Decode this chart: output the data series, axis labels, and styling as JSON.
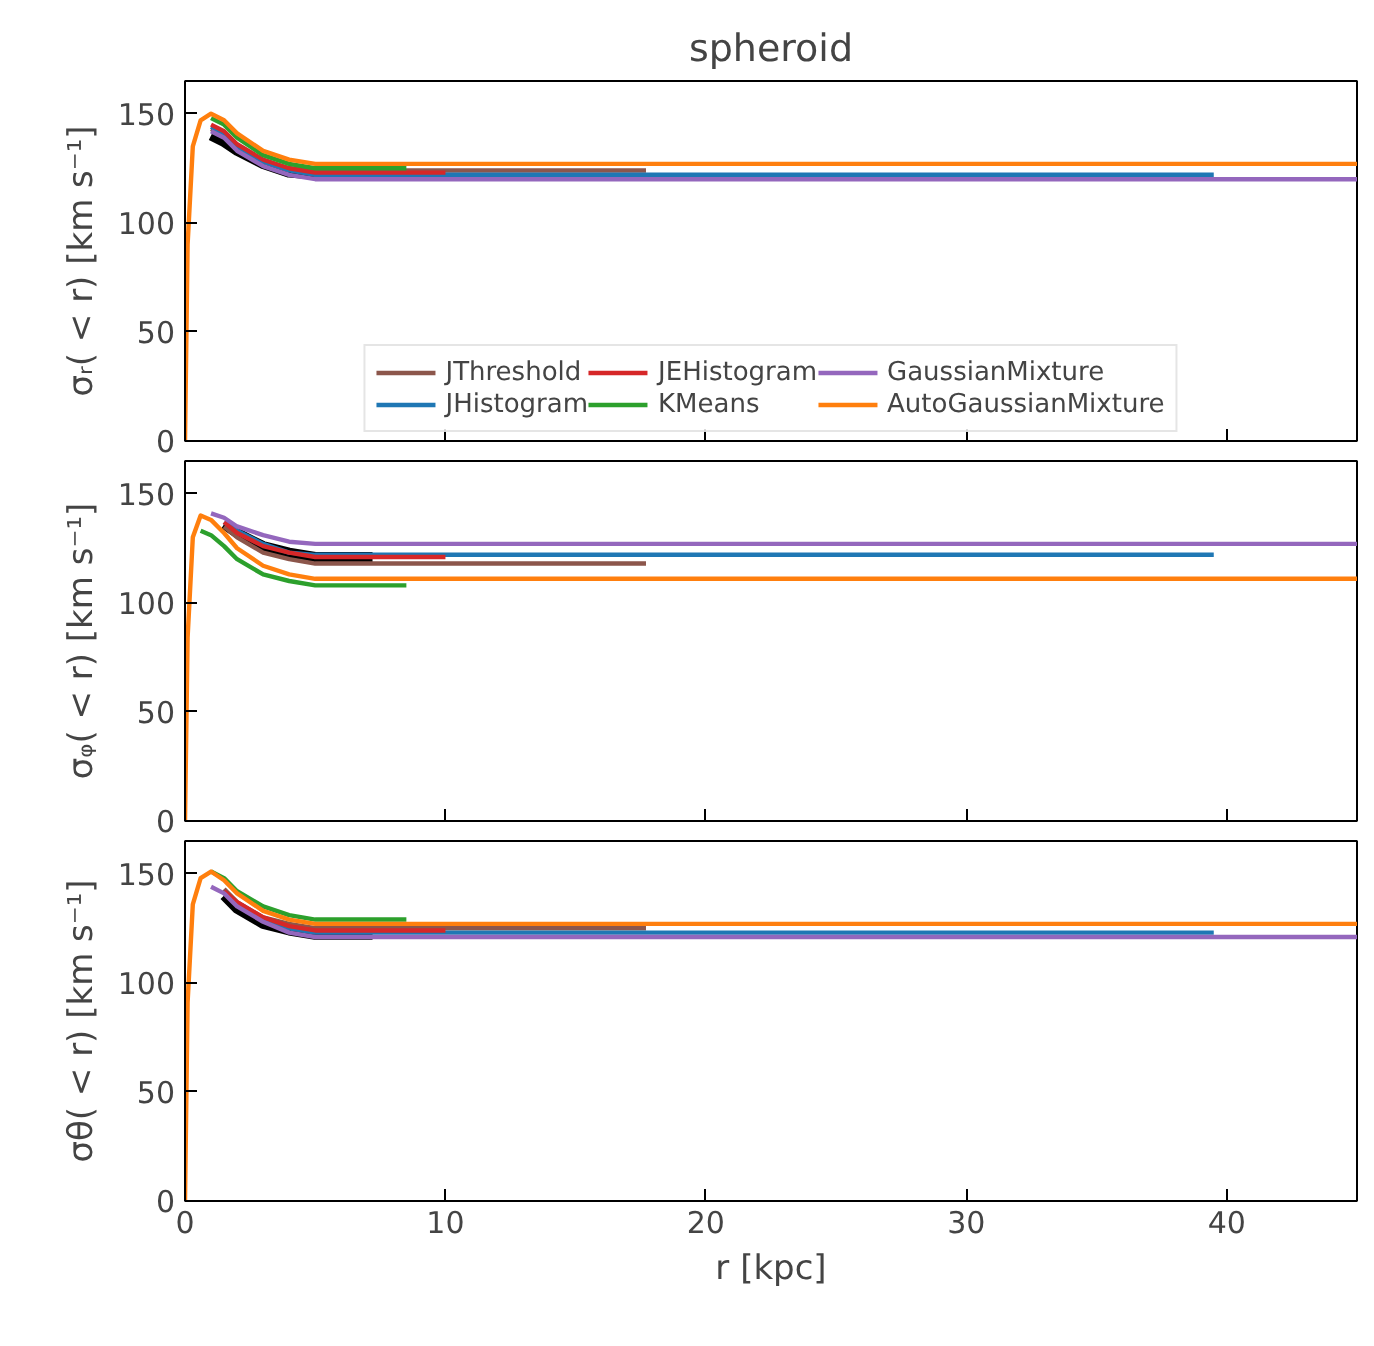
{
  "chart_data": [
    {
      "type": "line",
      "title": "spheroid",
      "ylabel": "σᵣ( < r) [km s⁻¹]",
      "xlim": [
        0,
        45
      ],
      "ylim": [
        0,
        165
      ],
      "xticks": [
        0,
        10,
        20,
        30,
        40
      ],
      "yticks": [
        0,
        50,
        100,
        150
      ],
      "grid": false,
      "legend": "bottom",
      "tick_labels": "y",
      "series": [
        {
          "color": "#000000",
          "x": [
            1,
            1.5,
            2,
            3,
            4,
            5,
            7.2
          ],
          "values": [
            140,
            137,
            133,
            127,
            123,
            122,
            122
          ]
        },
        {
          "name": "JThreshold",
          "color": "#8c564b",
          "x": [
            1,
            1.5,
            2,
            3,
            4,
            5,
            17.7
          ],
          "values": [
            143,
            140,
            135,
            128,
            125,
            124,
            124
          ]
        },
        {
          "name": "JHistogram",
          "color": "#1f77b4",
          "x": [
            1,
            1.5,
            2,
            3,
            4,
            5,
            39.5
          ],
          "values": [
            144,
            141,
            135,
            128,
            124,
            122,
            122
          ]
        },
        {
          "name": "JEHistogram",
          "color": "#d62728",
          "x": [
            1,
            1.5,
            2,
            3,
            4,
            5,
            10
          ],
          "values": [
            145,
            142,
            136,
            129,
            125,
            123,
            123
          ]
        },
        {
          "name": "KMeans",
          "color": "#2ca02c",
          "x": [
            1,
            1.5,
            2,
            3,
            4,
            5,
            8.5
          ],
          "values": [
            148,
            145,
            139,
            131,
            127,
            125,
            125
          ]
        },
        {
          "name": "GaussianMixture",
          "color": "#9467bd",
          "x": [
            1,
            1.5,
            2,
            3,
            4,
            5,
            45
          ],
          "values": [
            142,
            139,
            133,
            126,
            122,
            120,
            120
          ]
        },
        {
          "name": "AutoGaussianMixture",
          "color": "#ff7f0e",
          "x": [
            0,
            0.1,
            0.3,
            0.6,
            1,
            1.5,
            2,
            3,
            4,
            5,
            45
          ],
          "values": [
            0,
            90,
            135,
            147,
            150,
            147,
            141,
            133,
            129,
            127,
            127
          ]
        }
      ]
    },
    {
      "type": "line",
      "ylabel": "σᵩ( < r) [km s⁻¹]",
      "xlim": [
        0,
        45
      ],
      "ylim": [
        0,
        165
      ],
      "xticks": [
        0,
        10,
        20,
        30,
        40
      ],
      "yticks": [
        0,
        50,
        100,
        150
      ],
      "grid": false,
      "tick_labels": "y",
      "series": [
        {
          "color": "#000000",
          "x": [
            1.5,
            2,
            3,
            4,
            5,
            7.2
          ],
          "values": [
            136,
            132,
            126,
            123,
            121,
            121
          ]
        },
        {
          "color": "#8c564b",
          "x": [
            1.5,
            2,
            3,
            4,
            5,
            17.7
          ],
          "values": [
            135,
            130,
            123,
            120,
            118,
            118
          ]
        },
        {
          "color": "#1f77b4",
          "x": [
            1.5,
            2,
            3,
            4,
            5,
            39.5
          ],
          "values": [
            137,
            133,
            127,
            123,
            122,
            122
          ]
        },
        {
          "color": "#d62728",
          "x": [
            1.5,
            2,
            3,
            4,
            5,
            10
          ],
          "values": [
            137,
            132,
            126,
            123,
            121,
            121
          ]
        },
        {
          "color": "#2ca02c",
          "x": [
            0.6,
            1,
            1.5,
            2,
            3,
            4,
            5,
            8.5
          ],
          "values": [
            133,
            131,
            126,
            120,
            113,
            110,
            108,
            108
          ]
        },
        {
          "color": "#9467bd",
          "x": [
            1,
            1.5,
            2,
            3,
            4,
            5,
            45
          ],
          "values": [
            141,
            139,
            135,
            131,
            128,
            127,
            127
          ]
        },
        {
          "color": "#ff7f0e",
          "x": [
            0,
            0.1,
            0.3,
            0.6,
            1,
            1.5,
            2,
            3,
            4,
            5,
            45
          ],
          "values": [
            0,
            84,
            130,
            140,
            138,
            132,
            125,
            117,
            113,
            111,
            111
          ]
        }
      ]
    },
    {
      "type": "line",
      "xlabel": "r [kpc]",
      "ylabel": "σθ( < r) [km s⁻¹]",
      "xlim": [
        0,
        45
      ],
      "ylim": [
        0,
        165
      ],
      "xticks": [
        0,
        10,
        20,
        30,
        40
      ],
      "yticks": [
        0,
        50,
        100,
        150
      ],
      "grid": false,
      "series": [
        {
          "color": "#000000",
          "x": [
            1.5,
            2,
            3,
            4,
            5,
            7.2
          ],
          "values": [
            140,
            134,
            127,
            124,
            122,
            122
          ]
        },
        {
          "color": "#8c564b",
          "x": [
            1.5,
            2,
            3,
            4,
            5,
            17.7
          ],
          "values": [
            143,
            137,
            130,
            127,
            125,
            125
          ]
        },
        {
          "color": "#1f77b4",
          "x": [
            1.5,
            2,
            3,
            4,
            5,
            39.5
          ],
          "values": [
            142,
            136,
            129,
            125,
            123,
            123
          ]
        },
        {
          "color": "#d62728",
          "x": [
            1.5,
            2,
            3,
            4,
            5,
            10
          ],
          "values": [
            142,
            137,
            130,
            126,
            124,
            124
          ]
        },
        {
          "color": "#2ca02c",
          "x": [
            1,
            1.5,
            2,
            3,
            4,
            5,
            8.5
          ],
          "values": [
            151,
            148,
            142,
            135,
            131,
            129,
            129
          ]
        },
        {
          "color": "#9467bd",
          "x": [
            1,
            1.5,
            2,
            3,
            4,
            5,
            45
          ],
          "values": [
            144,
            141,
            135,
            128,
            123,
            121,
            121
          ]
        },
        {
          "color": "#ff7f0e",
          "x": [
            0,
            0.1,
            0.3,
            0.6,
            1,
            1.5,
            2,
            3,
            4,
            5,
            45
          ],
          "values": [
            0,
            91,
            136,
            148,
            151,
            147,
            141,
            133,
            129,
            127,
            127
          ]
        }
      ]
    }
  ]
}
